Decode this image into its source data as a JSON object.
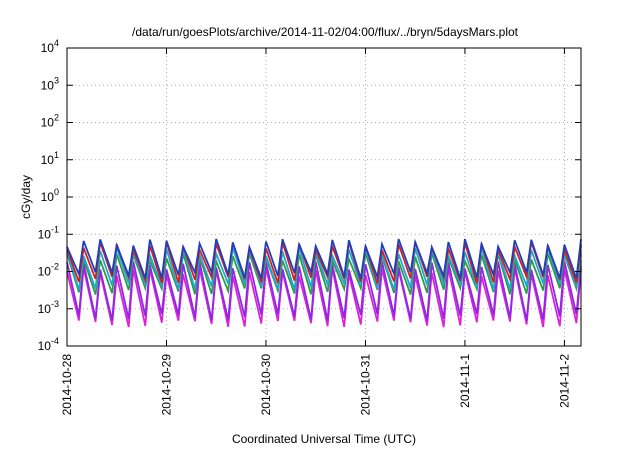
{
  "chart_data": {
    "type": "line",
    "title": "/data/run/goesPlots/archive/2014-11-02/04:00/flux/../bryn/5daysMars.plot",
    "xlabel": "Coordinated Universal Time (UTC)",
    "ylabel": "cGy/day",
    "y_scale": "log",
    "ylim": [
      0.0001,
      10000
    ],
    "y_ticks": [
      {
        "base": "10",
        "exp": "4",
        "value": 10000
      },
      {
        "base": "10",
        "exp": "3",
        "value": 1000
      },
      {
        "base": "10",
        "exp": "2",
        "value": 100
      },
      {
        "base": "10",
        "exp": "1",
        "value": 10
      },
      {
        "base": "10",
        "exp": "0",
        "value": 1
      },
      {
        "base": "10",
        "exp": "-1",
        "value": 0.1
      },
      {
        "base": "10",
        "exp": "-2",
        "value": 0.01
      },
      {
        "base": "10",
        "exp": "-3",
        "value": 0.001
      },
      {
        "base": "10",
        "exp": "-4",
        "value": 0.0001
      }
    ],
    "xlim": [
      "2014-10-28T00:00",
      "2014-11-02T04:00"
    ],
    "x_ticks": [
      "2014-10-28",
      "2014-10-29",
      "2014-10-30",
      "2014-10-31",
      "2014-11-1",
      "2014-11-2"
    ],
    "grid": true,
    "pattern": {
      "description": "sawtooth oscillation roughly every 4 hours",
      "cycles": 31
    },
    "series": [
      {
        "color": "#1f3fbf",
        "peak": 0.06,
        "trough": 0.008
      },
      {
        "color": "#d42020",
        "peak": 0.05,
        "trough": 0.006
      },
      {
        "color": "#20a8d0",
        "peak": 0.035,
        "trough": 0.004
      },
      {
        "color": "#2e9a4a",
        "peak": 0.025,
        "trough": 0.003
      },
      {
        "color": "#8a2be2",
        "peak": 0.015,
        "trough": 0.0006
      },
      {
        "color": "#e020d8",
        "peak": 0.01,
        "trough": 0.0004
      }
    ]
  }
}
